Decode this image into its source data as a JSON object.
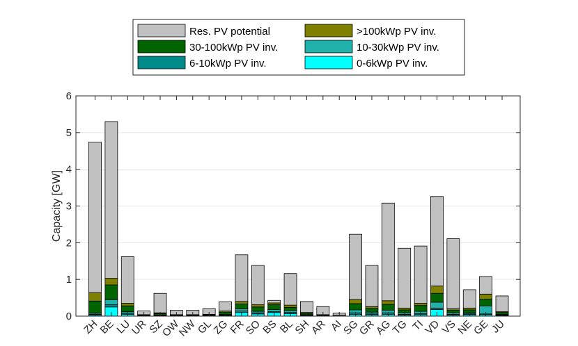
{
  "chart_data": {
    "type": "bar",
    "stacked": true,
    "title": "",
    "xlabel": "",
    "ylabel": "Capacity [GW]",
    "ylim": [
      0,
      6
    ],
    "yticks": [
      0,
      1,
      2,
      3,
      4,
      5,
      6
    ],
    "grid": "y",
    "legend_position": "top",
    "categories": [
      "ZH",
      "BE",
      "LU",
      "UR",
      "SZ",
      "OW",
      "NW",
      "GL",
      "ZG",
      "FR",
      "SO",
      "BS",
      "BL",
      "SH",
      "AR",
      "AI",
      "SG",
      "GR",
      "AG",
      "TG",
      "TI",
      "VD",
      "VS",
      "NE",
      "GE",
      "JU"
    ],
    "series": [
      {
        "name": "0-6kWp PV inv.",
        "color": "#00ffff",
        "values": [
          0.03,
          0.25,
          0.05,
          0.01,
          0.01,
          0.01,
          0.01,
          0.01,
          0.02,
          0.1,
          0.06,
          0.1,
          0.07,
          0.02,
          0.01,
          0.01,
          0.05,
          0.04,
          0.05,
          0.03,
          0.04,
          0.18,
          0.03,
          0.04,
          0.04,
          0.02
        ]
      },
      {
        "name": "6-10kWp PV inv.",
        "color": "#008b8b",
        "values": [
          0.02,
          0.06,
          0.03,
          0.0,
          0.01,
          0.0,
          0.0,
          0.0,
          0.01,
          0.04,
          0.03,
          0.02,
          0.03,
          0.01,
          0.0,
          0.0,
          0.04,
          0.02,
          0.04,
          0.02,
          0.03,
          0.04,
          0.02,
          0.02,
          0.02,
          0.01
        ]
      },
      {
        "name": "10-30kWp PV inv.",
        "color": "#20b2aa",
        "values": [
          0.03,
          0.14,
          0.04,
          0.0,
          0.01,
          0.0,
          0.0,
          0.01,
          0.02,
          0.06,
          0.04,
          0.06,
          0.05,
          0.01,
          0.0,
          0.0,
          0.08,
          0.05,
          0.07,
          0.04,
          0.06,
          0.16,
          0.04,
          0.03,
          0.22,
          0.02
        ]
      },
      {
        "name": "30-100kWp PV inv.",
        "color": "#006400",
        "values": [
          0.33,
          0.4,
          0.16,
          0.02,
          0.04,
          0.02,
          0.02,
          0.02,
          0.06,
          0.13,
          0.12,
          0.13,
          0.09,
          0.04,
          0.02,
          0.01,
          0.17,
          0.1,
          0.16,
          0.08,
          0.16,
          0.24,
          0.07,
          0.08,
          0.18,
          0.05
        ]
      },
      {
        "name": ">100kWp PV inv.",
        "color": "#808000",
        "values": [
          0.23,
          0.18,
          0.07,
          0.01,
          0.02,
          0.01,
          0.01,
          0.01,
          0.03,
          0.07,
          0.06,
          0.05,
          0.06,
          0.02,
          0.01,
          0.0,
          0.11,
          0.05,
          0.1,
          0.05,
          0.06,
          0.2,
          0.04,
          0.05,
          0.14,
          0.02
        ]
      },
      {
        "name": "Res. PV potential",
        "color": "#c0c0c0",
        "values": [
          4.1,
          4.27,
          1.27,
          0.1,
          0.53,
          0.12,
          0.12,
          0.15,
          0.25,
          1.27,
          1.07,
          0.07,
          0.86,
          0.3,
          0.22,
          0.06,
          1.78,
          1.12,
          2.66,
          1.63,
          1.56,
          2.44,
          1.91,
          0.5,
          0.48,
          0.43
        ]
      }
    ],
    "legend_order": [
      "Res. PV potential",
      ">100kWp PV inv.",
      "30-100kWp PV inv.",
      "10-30kWp PV inv.",
      "6-10kWp PV inv.",
      "0-6kWp PV inv."
    ]
  }
}
